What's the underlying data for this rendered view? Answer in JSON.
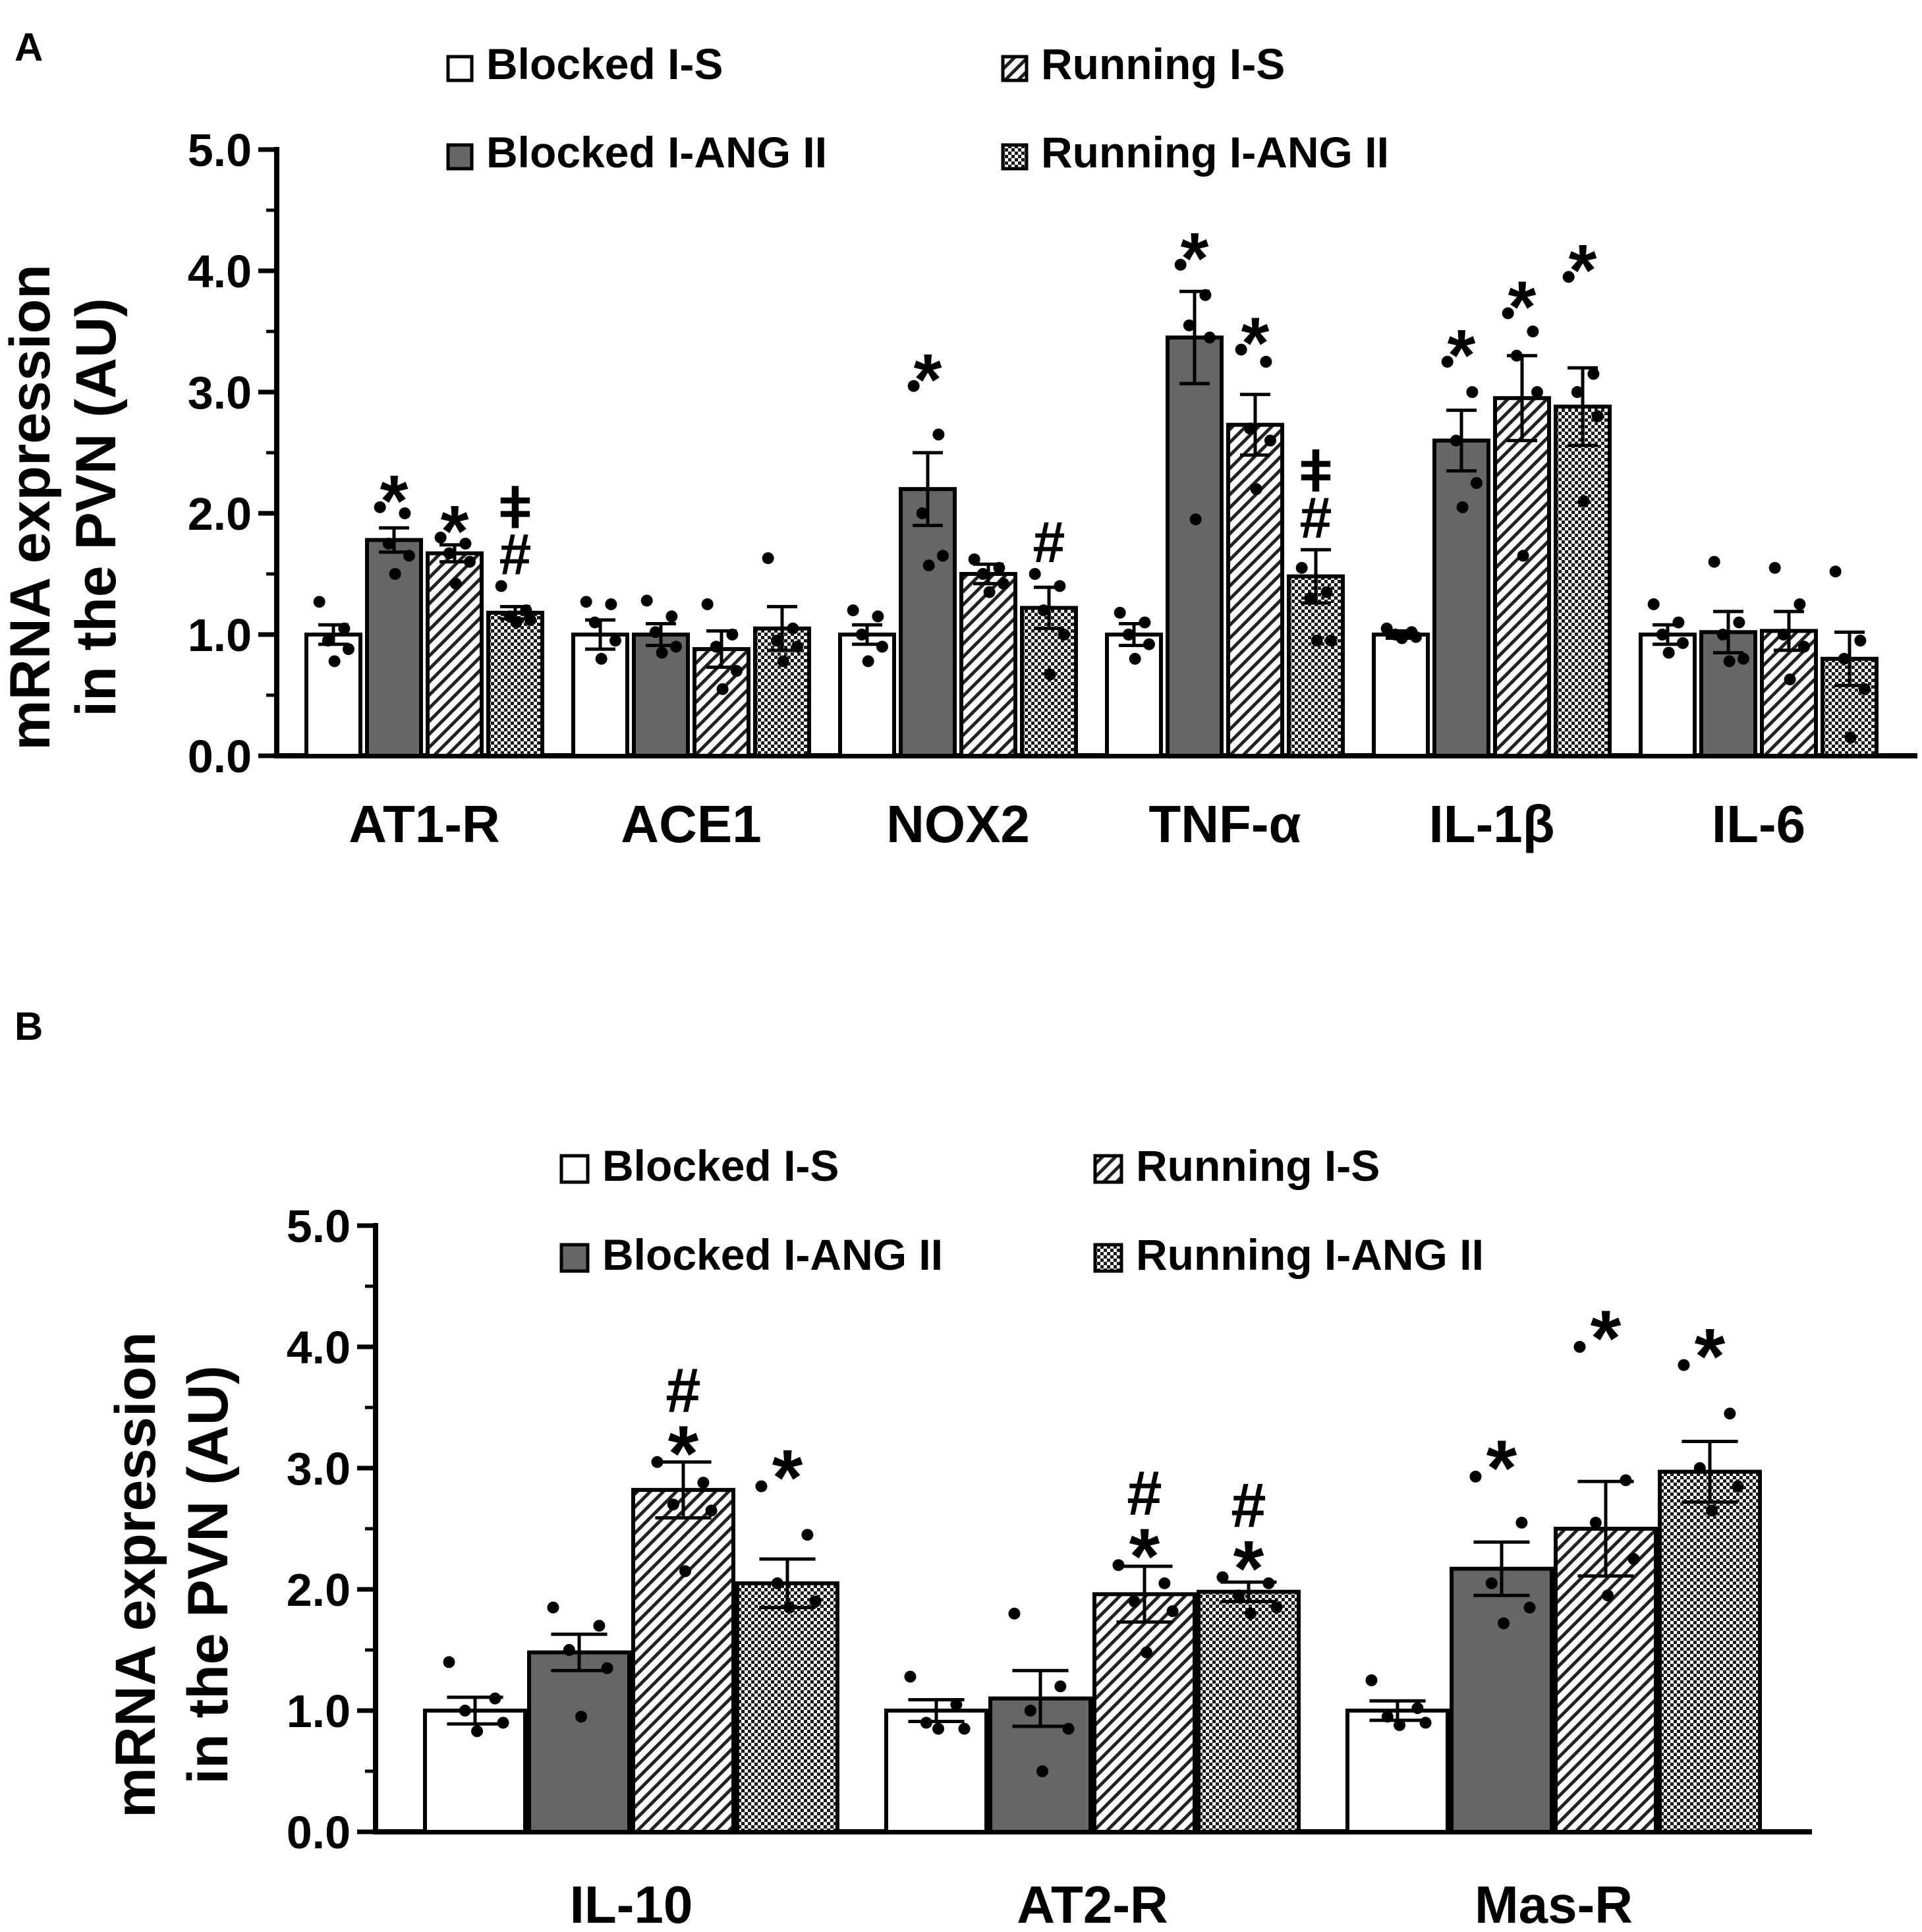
{
  "colors": {
    "blocked_angii": "#666666",
    "white": "#ffffff",
    "ink": "#000000"
  },
  "chart_data": [
    {
      "panel": "A",
      "type": "bar",
      "ylabel": [
        "mRNA expression",
        "in the PVN (AU)"
      ],
      "ylim": [
        0,
        5
      ],
      "yticks": [
        "0.0",
        "1.0",
        "2.0",
        "3.0",
        "4.0",
        "5.0"
      ],
      "legend": [
        "Blocked I-S",
        "Running I-S",
        "Blocked I-ANG II",
        "Running I-ANG II"
      ],
      "categories": [
        "AT1-R",
        "ACE1",
        "NOX2",
        "TNF-α",
        "IL-1β",
        "IL-6"
      ],
      "series": [
        {
          "name": "Blocked I-S",
          "pattern": "white",
          "values": [
            1.0,
            1.0,
            1.0,
            1.0,
            1.0,
            1.0
          ],
          "sem": [
            0.08,
            0.12,
            0.08,
            0.09,
            0.03,
            0.08
          ],
          "points": [
            [
              1.27,
              1.05,
              0.95,
              0.88,
              0.78
            ],
            [
              1.27,
              1.25,
              1.1,
              0.95,
              0.8
            ],
            [
              1.2,
              1.15,
              1.0,
              0.9,
              0.78
            ],
            [
              1.18,
              1.1,
              1.0,
              0.92,
              0.8
            ],
            [
              1.05,
              1.02,
              1.0,
              0.98,
              0.97
            ],
            [
              1.25,
              1.1,
              1.0,
              0.93,
              0.85
            ]
          ],
          "marks": [
            [],
            [],
            [],
            [],
            [],
            []
          ]
        },
        {
          "name": "Blocked I-ANG II",
          "pattern": "gray",
          "values": [
            1.78,
            1.0,
            2.2,
            3.45,
            2.6,
            1.02
          ],
          "sem": [
            0.1,
            0.09,
            0.3,
            0.38,
            0.25,
            0.17
          ],
          "points": [
            [
              2.05,
              2.0,
              1.75,
              1.65,
              1.5
            ],
            [
              1.28,
              1.15,
              1.02,
              0.9,
              0.85
            ],
            [
              3.05,
              2.65,
              2.0,
              1.65,
              1.57
            ],
            [
              4.05,
              3.8,
              3.55,
              3.45,
              1.95
            ],
            [
              3.25,
              3.0,
              2.6,
              2.25,
              2.05
            ],
            [
              1.6,
              1.1,
              1.0,
              0.8,
              0.78
            ]
          ],
          "marks": [
            [
              "*"
            ],
            [],
            [
              "*"
            ],
            [
              "*"
            ],
            [
              "*"
            ],
            []
          ]
        },
        {
          "name": "Running I-S",
          "pattern": "hatch",
          "values": [
            1.67,
            0.88,
            1.5,
            2.73,
            2.95,
            1.03
          ],
          "sem": [
            0.07,
            0.15,
            0.08,
            0.25,
            0.35,
            0.16
          ],
          "points": [
            [
              1.8,
              1.75,
              1.67,
              1.6,
              1.42
            ],
            [
              1.25,
              1.0,
              0.9,
              0.7,
              0.55
            ],
            [
              1.62,
              1.55,
              1.5,
              1.42,
              1.35
            ],
            [
              3.35,
              3.25,
              2.7,
              2.6,
              2.2
            ],
            [
              3.65,
              3.5,
              3.3,
              3.0,
              1.65
            ],
            [
              1.55,
              1.25,
              1.0,
              0.9,
              0.63
            ]
          ],
          "marks": [
            [
              "*"
            ],
            [],
            [],
            [
              "*"
            ],
            [
              "*"
            ],
            []
          ]
        },
        {
          "name": "Running I-ANG II",
          "pattern": "checker",
          "values": [
            1.18,
            1.05,
            1.22,
            1.48,
            2.88,
            0.8
          ],
          "sem": [
            0.05,
            0.18,
            0.17,
            0.22,
            0.32,
            0.22
          ],
          "points": [
            [
              1.4,
              1.2,
              1.15,
              1.12,
              1.1
            ],
            [
              1.63,
              1.05,
              0.95,
              0.9,
              0.78
            ],
            [
              1.5,
              1.4,
              1.2,
              1.0,
              0.67
            ],
            [
              1.55,
              1.35,
              1.3,
              0.95,
              0.95
            ],
            [
              3.95,
              3.15,
              3.0,
              2.8,
              2.1
            ],
            [
              1.52,
              0.95,
              0.8,
              0.55,
              0.15
            ]
          ],
          "marks": [
            [
              "ǂ",
              "#"
            ],
            [],
            [
              "#"
            ],
            [
              "ǂ",
              "#"
            ],
            [
              "*"
            ],
            []
          ]
        }
      ]
    },
    {
      "panel": "B",
      "type": "bar",
      "ylabel": [
        "mRNA expression",
        "in the PVN (AU)"
      ],
      "ylim": [
        0,
        5
      ],
      "yticks": [
        "0.0",
        "1.0",
        "2.0",
        "3.0",
        "4.0",
        "5.0"
      ],
      "legend": [
        "Blocked I-S",
        "Running I-S",
        "Blocked I-ANG II",
        "Running I-ANG II"
      ],
      "categories": [
        "IL-10",
        "AT2-R",
        "Mas-R"
      ],
      "series": [
        {
          "name": "Blocked I-S",
          "pattern": "white",
          "values": [
            1.0,
            1.0,
            1.0
          ],
          "sem": [
            0.11,
            0.09,
            0.08
          ],
          "points": [
            [
              1.4,
              1.1,
              1.0,
              0.9,
              0.83
            ],
            [
              1.28,
              1.05,
              0.9,
              0.85,
              0.85
            ],
            [
              1.25,
              1.02,
              0.95,
              0.9,
              0.88
            ]
          ],
          "marks": [
            [],
            [],
            []
          ]
        },
        {
          "name": "Blocked I-ANG II",
          "pattern": "gray",
          "values": [
            1.48,
            1.1,
            2.17
          ],
          "sem": [
            0.15,
            0.23,
            0.22
          ],
          "points": [
            [
              1.85,
              1.7,
              1.5,
              1.35,
              0.95
            ],
            [
              1.8,
              1.2,
              1.0,
              0.85,
              0.5
            ],
            [
              2.93,
              2.55,
              2.05,
              1.85,
              1.72
            ]
          ],
          "marks": [
            [],
            [],
            [
              "*"
            ]
          ]
        },
        {
          "name": "Running I-S",
          "pattern": "hatch",
          "values": [
            2.82,
            1.96,
            2.5
          ],
          "sem": [
            0.23,
            0.23,
            0.39
          ],
          "points": [
            [
              3.05,
              2.88,
              2.7,
              2.65,
              2.15
            ],
            [
              2.2,
              2.05,
              1.9,
              1.82,
              1.48
            ],
            [
              4.0,
              2.9,
              2.55,
              2.25,
              1.95
            ]
          ],
          "marks": [
            [
              "#",
              "*"
            ],
            [
              "#",
              "*"
            ],
            [
              "*"
            ]
          ]
        },
        {
          "name": "Running I-ANG II",
          "pattern": "checker",
          "values": [
            2.05,
            1.98,
            2.97
          ],
          "sem": [
            0.2,
            0.08,
            0.25
          ],
          "points": [
            [
              2.85,
              2.45,
              2.05,
              1.9,
              1.85
            ],
            [
              2.1,
              2.05,
              1.95,
              1.85,
              1.8
            ],
            [
              3.85,
              3.45,
              3.0,
              2.85,
              2.65
            ]
          ],
          "marks": [
            [
              "*"
            ],
            [
              "#",
              "*"
            ],
            [
              "*"
            ]
          ]
        }
      ]
    }
  ]
}
